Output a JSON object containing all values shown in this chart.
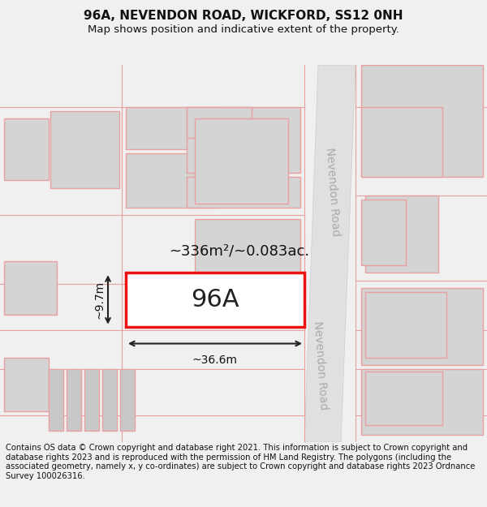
{
  "title": "96A, NEVENDON ROAD, WICKFORD, SS12 0NH",
  "subtitle": "Map shows position and indicative extent of the property.",
  "copyright": "Contains OS data © Crown copyright and database right 2021. This information is subject to Crown copyright and database rights 2023 and is reproduced with the permission of HM Land Registry. The polygons (including the associated geometry, namely x, y co-ordinates) are subject to Crown copyright and database rights 2023 Ordnance Survey 100026316.",
  "bg_color": "#f0f0f0",
  "map_bg": "#ffffff",
  "building_fill": "#d4d4d4",
  "building_edge": "#e8a0a0",
  "plot_edge_light": "#e8a0a0",
  "subject_fill": "#ffffff",
  "subject_edge": "#ee1111",
  "road_fill": "#e0e0e0",
  "road_edge": "#cccccc",
  "road_label_color": "#aaaaaa",
  "road_label": "Nevendon Road",
  "area_label": "~336m²/~0.083ac.",
  "width_label": "~36.6m",
  "height_label": "~9.7m",
  "subject_label": "96A",
  "title_fontsize": 11,
  "subtitle_fontsize": 9.5,
  "copyright_fontsize": 7.2,
  "annot_fontsize": 10,
  "area_fontsize": 13,
  "subject_fontsize": 22
}
